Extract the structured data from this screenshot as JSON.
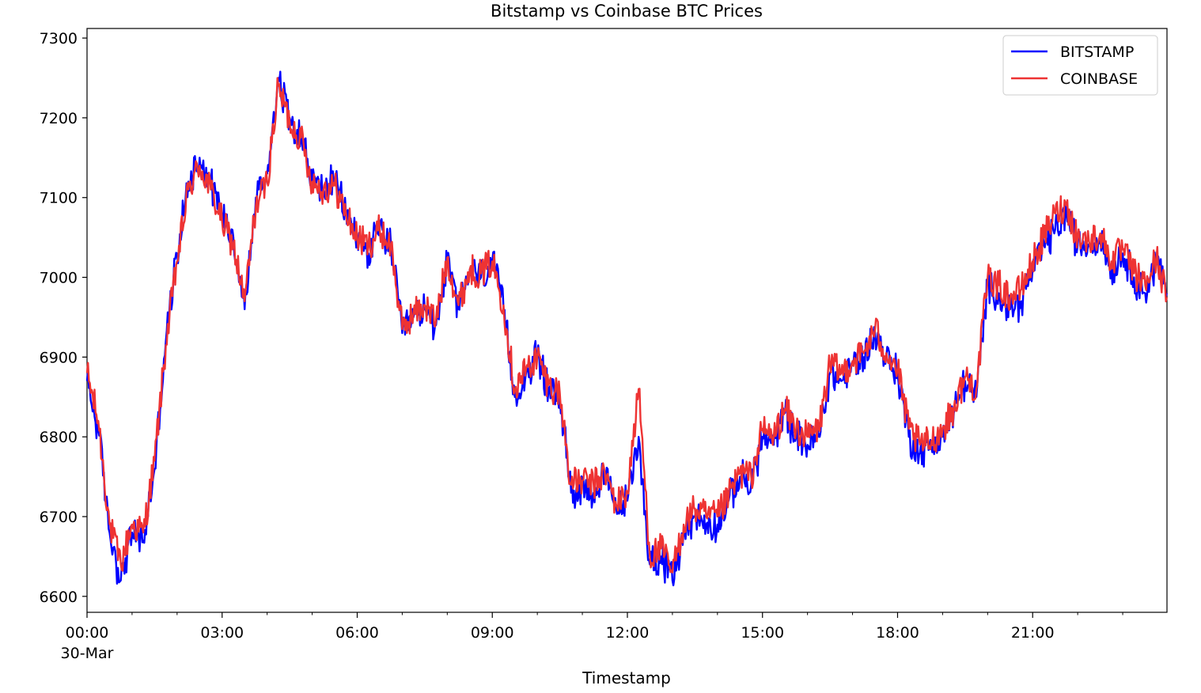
{
  "chart_data": {
    "type": "line",
    "title": "Bitstamp vs Coinbase BTC Prices",
    "xlabel": "Timestamp",
    "ylabel": "",
    "x_tick_labels": [
      "00:00",
      "03:00",
      "06:00",
      "09:00",
      "12:00",
      "15:00",
      "18:00",
      "21:00"
    ],
    "x_tick_sublabel": "30-Mar",
    "xlim_hours": [
      0,
      23.983
    ],
    "y_ticks": [
      6600,
      6700,
      6800,
      6900,
      7000,
      7100,
      7200,
      7300
    ],
    "ylim": [
      6580,
      7312
    ],
    "grid": false,
    "legend_position": "upper right",
    "x": [
      0,
      0.25,
      0.5,
      0.75,
      1,
      1.25,
      1.5,
      1.75,
      2,
      2.25,
      2.5,
      2.75,
      3,
      3.25,
      3.5,
      3.75,
      4,
      4.25,
      4.5,
      4.75,
      5,
      5.25,
      5.5,
      5.75,
      6,
      6.25,
      6.5,
      6.75,
      7,
      7.25,
      7.5,
      7.75,
      8,
      8.25,
      8.5,
      8.75,
      9,
      9.25,
      9.5,
      9.75,
      10,
      10.25,
      10.5,
      10.75,
      11,
      11.25,
      11.5,
      11.75,
      12,
      12.25,
      12.5,
      12.75,
      13,
      13.25,
      13.5,
      13.75,
      14,
      14.25,
      14.5,
      14.75,
      15,
      15.25,
      15.5,
      15.75,
      16,
      16.25,
      16.5,
      16.75,
      17,
      17.25,
      17.5,
      17.75,
      18,
      18.25,
      18.5,
      18.75,
      19,
      19.25,
      19.5,
      19.75,
      20,
      20.25,
      20.5,
      20.75,
      21,
      21.25,
      21.5,
      21.75,
      22,
      22.25,
      22.5,
      22.75,
      23,
      23.25,
      23.5,
      23.75,
      23.98
    ],
    "series": [
      {
        "name": "BITSTAMP",
        "color": "#0000ff",
        "values": [
          6870,
          6810,
          6680,
          6620,
          6680,
          6670,
          6760,
          6920,
          7030,
          7120,
          7150,
          7120,
          7080,
          7050,
          6960,
          7100,
          7130,
          7250,
          7200,
          7180,
          7120,
          7110,
          7120,
          7080,
          7050,
          7030,
          7060,
          7040,
          6930,
          6950,
          6960,
          6940,
          7020,
          6960,
          7010,
          7000,
          7020,
          6960,
          6850,
          6880,
          6900,
          6860,
          6850,
          6730,
          6740,
          6730,
          6750,
          6710,
          6720,
          6800,
          6640,
          6650,
          6620,
          6680,
          6700,
          6690,
          6690,
          6720,
          6750,
          6740,
          6800,
          6790,
          6830,
          6800,
          6790,
          6800,
          6880,
          6870,
          6890,
          6900,
          6930,
          6900,
          6880,
          6800,
          6780,
          6790,
          6800,
          6830,
          6870,
          6850,
          6990,
          6980,
          6960,
          6970,
          7010,
          7040,
          7060,
          7080,
          7040,
          7040,
          7050,
          7010,
          7030,
          7000,
          6980,
          7020,
          6980
        ]
      },
      {
        "name": "COINBASE",
        "color": "#ee3333",
        "values": [
          6880,
          6820,
          6690,
          6640,
          6690,
          6680,
          6770,
          6915,
          7020,
          7110,
          7140,
          7110,
          7070,
          7040,
          6970,
          7090,
          7120,
          7240,
          7195,
          7175,
          7120,
          7110,
          7115,
          7080,
          7050,
          7040,
          7060,
          7040,
          6935,
          6955,
          6965,
          6945,
          7025,
          6965,
          7010,
          7005,
          7020,
          6965,
          6860,
          6885,
          6900,
          6865,
          6855,
          6740,
          6745,
          6740,
          6755,
          6715,
          6730,
          6860,
          6650,
          6660,
          6630,
          6690,
          6710,
          6700,
          6700,
          6725,
          6755,
          6750,
          6810,
          6800,
          6835,
          6810,
          6800,
          6810,
          6890,
          6880,
          6895,
          6905,
          6935,
          6905,
          6885,
          6810,
          6790,
          6795,
          6810,
          6835,
          6875,
          6860,
          7000,
          6990,
          6975,
          6985,
          7020,
          7050,
          7080,
          7090,
          7050,
          7045,
          7055,
          7020,
          7035,
          7005,
          6990,
          7025,
          6975
        ]
      }
    ]
  }
}
